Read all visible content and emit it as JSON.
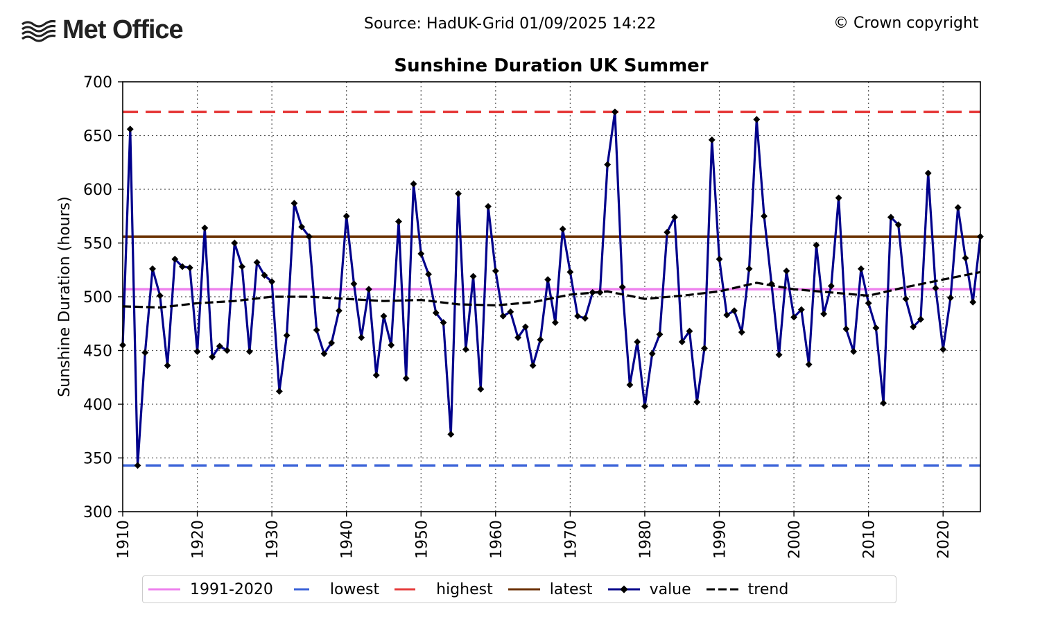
{
  "header": {
    "logo_text": "Met Office",
    "source": "Source: HadUK-Grid 01/09/2025 14:22",
    "copyright": "© Crown copyright"
  },
  "chart_data": {
    "type": "line",
    "title": "Sunshine Duration UK Summer",
    "xlabel": "",
    "ylabel": "Sunshine Duration (hours)",
    "xlim": [
      1910,
      2025
    ],
    "ylim": [
      300,
      700
    ],
    "xticks": [
      1910,
      1920,
      1930,
      1940,
      1950,
      1960,
      1970,
      1980,
      1990,
      2000,
      2010,
      2020
    ],
    "yticks": [
      300,
      350,
      400,
      450,
      500,
      550,
      600,
      650,
      700
    ],
    "grid": true,
    "legend_position": "bottom",
    "reference_lines": [
      {
        "name": "1991-2020",
        "value": 507,
        "color": "#ee82ee",
        "style": "solid"
      },
      {
        "name": "lowest",
        "value": 343,
        "color": "#3a62d8",
        "style": "dashed"
      },
      {
        "name": "highest",
        "value": 672,
        "color": "#e63d3d",
        "style": "dashed"
      },
      {
        "name": "latest",
        "value": 556,
        "color": "#6b3200",
        "style": "solid"
      }
    ],
    "series": [
      {
        "name": "value",
        "color": "#00008b",
        "x": [
          1910,
          1911,
          1912,
          1913,
          1914,
          1915,
          1916,
          1917,
          1918,
          1919,
          1920,
          1921,
          1922,
          1923,
          1924,
          1925,
          1926,
          1927,
          1928,
          1929,
          1930,
          1931,
          1932,
          1933,
          1934,
          1935,
          1936,
          1937,
          1938,
          1939,
          1940,
          1941,
          1942,
          1943,
          1944,
          1945,
          1946,
          1947,
          1948,
          1949,
          1950,
          1951,
          1952,
          1953,
          1954,
          1955,
          1956,
          1957,
          1958,
          1959,
          1960,
          1961,
          1962,
          1963,
          1964,
          1965,
          1966,
          1967,
          1968,
          1969,
          1970,
          1971,
          1972,
          1973,
          1974,
          1975,
          1976,
          1977,
          1978,
          1979,
          1980,
          1981,
          1982,
          1983,
          1984,
          1985,
          1986,
          1987,
          1988,
          1989,
          1990,
          1991,
          1992,
          1993,
          1994,
          1995,
          1996,
          1997,
          1998,
          1999,
          2000,
          2001,
          2002,
          2003,
          2004,
          2005,
          2006,
          2007,
          2008,
          2009,
          2010,
          2011,
          2012,
          2013,
          2014,
          2015,
          2016,
          2017,
          2018,
          2019,
          2020,
          2021,
          2022,
          2023,
          2024,
          2025
        ],
        "values": [
          455,
          656,
          343,
          448,
          526,
          501,
          436,
          535,
          528,
          527,
          449,
          564,
          444,
          454,
          450,
          550,
          528,
          449,
          532,
          520,
          514,
          412,
          464,
          587,
          565,
          556,
          469,
          447,
          457,
          487,
          575,
          512,
          462,
          507,
          427,
          482,
          455,
          570,
          424,
          605,
          540,
          521,
          485,
          476,
          372,
          596,
          451,
          519,
          414,
          584,
          524,
          482,
          486,
          462,
          472,
          436,
          460,
          516,
          476,
          563,
          523,
          482,
          480,
          504,
          504,
          623,
          672,
          509,
          418,
          458,
          398,
          447,
          465,
          560,
          574,
          458,
          468,
          402,
          452,
          646,
          535,
          483,
          487,
          467,
          526,
          665,
          575,
          512,
          446,
          524,
          481,
          488,
          437,
          548,
          484,
          510,
          592,
          470,
          449,
          526,
          494,
          471,
          401,
          574,
          567,
          498,
          472,
          479,
          615,
          508,
          451,
          499,
          583,
          536,
          495,
          556
        ]
      },
      {
        "name": "trend",
        "color": "#000000",
        "x": [
          1910,
          1915,
          1920,
          1925,
          1930,
          1935,
          1940,
          1945,
          1950,
          1955,
          1960,
          1965,
          1970,
          1975,
          1980,
          1985,
          1990,
          1995,
          2000,
          2005,
          2010,
          2015,
          2020,
          2025
        ],
        "values": [
          491,
          490,
          494,
          496,
          500,
          500,
          498,
          496,
          497,
          493,
          492,
          495,
          502,
          505,
          498,
          501,
          505,
          513,
          507,
          504,
          501,
          509,
          516,
          523
        ]
      }
    ]
  }
}
